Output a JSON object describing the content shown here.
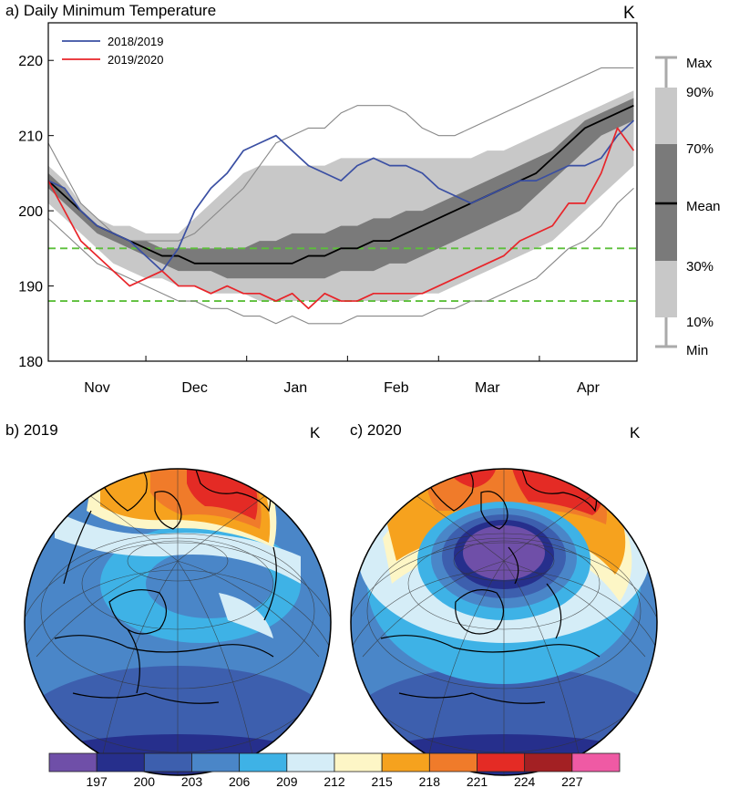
{
  "panel_a": {
    "title": "a) Daily Minimum Temperature",
    "unit": "K",
    "legend": [
      "2018/2019",
      "2019/2020"
    ],
    "shade_key": [
      "Max",
      "90%",
      "70%",
      "Mean",
      "30%",
      "10%",
      "Min"
    ]
  },
  "panel_b": {
    "title": "b) 2019",
    "unit": "K"
  },
  "panel_c": {
    "title": "c) 2020",
    "unit": "K"
  },
  "colorbar": {
    "labels": [
      "197",
      "200",
      "203",
      "206",
      "209",
      "212",
      "215",
      "218",
      "221",
      "224",
      "227"
    ],
    "colors": [
      "#6f4fa8",
      "#262f8c",
      "#3d5fae",
      "#4a86c8",
      "#3eb2e6",
      "#d5edf7",
      "#fdf6c6",
      "#f6a21e",
      "#f07b2a",
      "#e42b25",
      "#a32023",
      "#ef5aa4"
    ]
  },
  "colors": {
    "series_2018_2019": "#3a4fa3",
    "series_2019_2020": "#e8252a",
    "threshold": "#5cbf3a"
  },
  "chart_data": [
    {
      "type": "line",
      "title": "a) Daily Minimum Temperature",
      "ylabel": "K",
      "ylim": [
        180,
        225
      ],
      "yticks": [
        180,
        190,
        200,
        210,
        220
      ],
      "x_labels": [
        "Nov",
        "Dec",
        "Jan",
        "Feb",
        "Mar",
        "Apr"
      ],
      "x_label_days": [
        15,
        45,
        76,
        107,
        135,
        166
      ],
      "x_boundary_days": [
        0,
        30,
        61,
        92,
        120,
        151,
        181
      ],
      "thresholds": [
        195,
        188
      ],
      "grid": false,
      "legend_position": "top-left",
      "days": [
        0,
        5,
        10,
        15,
        20,
        25,
        30,
        35,
        40,
        45,
        50,
        55,
        60,
        65,
        70,
        75,
        80,
        85,
        90,
        95,
        100,
        105,
        110,
        115,
        120,
        125,
        130,
        135,
        140,
        145,
        150,
        155,
        160,
        165,
        170,
        175,
        180
      ],
      "series": [
        {
          "name": "2018/2019",
          "values": [
            204,
            203,
            200,
            198,
            197,
            196,
            194,
            192,
            195,
            200,
            203,
            205,
            208,
            209,
            210,
            208,
            206,
            205,
            204,
            206,
            207,
            206,
            206,
            205,
            203,
            202,
            201,
            202,
            203,
            204,
            204,
            205,
            206,
            206,
            207,
            210,
            212
          ]
        },
        {
          "name": "2019/2020",
          "values": [
            204,
            200,
            196,
            194,
            192,
            190,
            191,
            192,
            190,
            190,
            189,
            190,
            189,
            189,
            188,
            189,
            187,
            189,
            188,
            188,
            189,
            189,
            189,
            189,
            190,
            191,
            192,
            193,
            194,
            196,
            197,
            198,
            201,
            201,
            205,
            211,
            208
          ]
        },
        {
          "name": "",
          "values": [
            204,
            202,
            200,
            198,
            197,
            196,
            195,
            194,
            194,
            193,
            193,
            193,
            193,
            193,
            193,
            193,
            194,
            194,
            195,
            195,
            196,
            196,
            197,
            198,
            199,
            200,
            201,
            202,
            203,
            204,
            205,
            207,
            209,
            211,
            212,
            213,
            214
          ]
        },
        {
          "name": "",
          "values": [
            209,
            205,
            201,
            199,
            197,
            196,
            196,
            196,
            196,
            197,
            199,
            201,
            203,
            206,
            209,
            210,
            211,
            211,
            213,
            214,
            214,
            214,
            213,
            211,
            210,
            210,
            211,
            212,
            213,
            214,
            215,
            216,
            217,
            218,
            219,
            219,
            219
          ]
        },
        {
          "name": "",
          "values": [
            199,
            197,
            195,
            193,
            192,
            191,
            190,
            189,
            188,
            188,
            187,
            187,
            186,
            186,
            185,
            186,
            185,
            185,
            185,
            186,
            186,
            186,
            186,
            186,
            187,
            187,
            188,
            188,
            189,
            190,
            191,
            193,
            195,
            196,
            198,
            201,
            203
          ]
        }
      ],
      "bands": [
        {
          "level": "10%-90%",
          "upper": [
            206,
            204,
            201,
            199,
            198,
            198,
            197,
            197,
            197,
            199,
            201,
            203,
            205,
            206,
            206,
            206,
            206,
            206,
            207,
            207,
            207,
            207,
            207,
            207,
            207,
            207,
            207,
            208,
            208,
            209,
            210,
            211,
            212,
            213,
            214,
            215,
            216
          ],
          "lower": [
            201,
            199,
            197,
            195,
            193,
            192,
            191,
            191,
            190,
            190,
            189,
            189,
            189,
            188,
            188,
            188,
            188,
            188,
            188,
            188,
            188,
            188,
            188,
            189,
            189,
            190,
            191,
            192,
            193,
            194,
            195,
            196,
            198,
            200,
            202,
            204,
            206
          ]
        },
        {
          "level": "30%-70%",
          "upper": [
            205,
            203,
            200,
            198,
            197,
            196,
            196,
            195,
            195,
            195,
            195,
            195,
            195,
            196,
            196,
            197,
            197,
            197,
            198,
            198,
            199,
            199,
            200,
            200,
            201,
            202,
            203,
            204,
            205,
            206,
            207,
            208,
            210,
            212,
            213,
            214,
            215
          ],
          "lower": [
            203,
            201,
            199,
            197,
            196,
            195,
            194,
            193,
            192,
            192,
            192,
            191,
            191,
            191,
            191,
            191,
            191,
            191,
            192,
            192,
            192,
            193,
            193,
            194,
            195,
            196,
            197,
            198,
            199,
            200,
            202,
            204,
            206,
            208,
            210,
            211,
            212
          ]
        }
      ]
    }
  ]
}
